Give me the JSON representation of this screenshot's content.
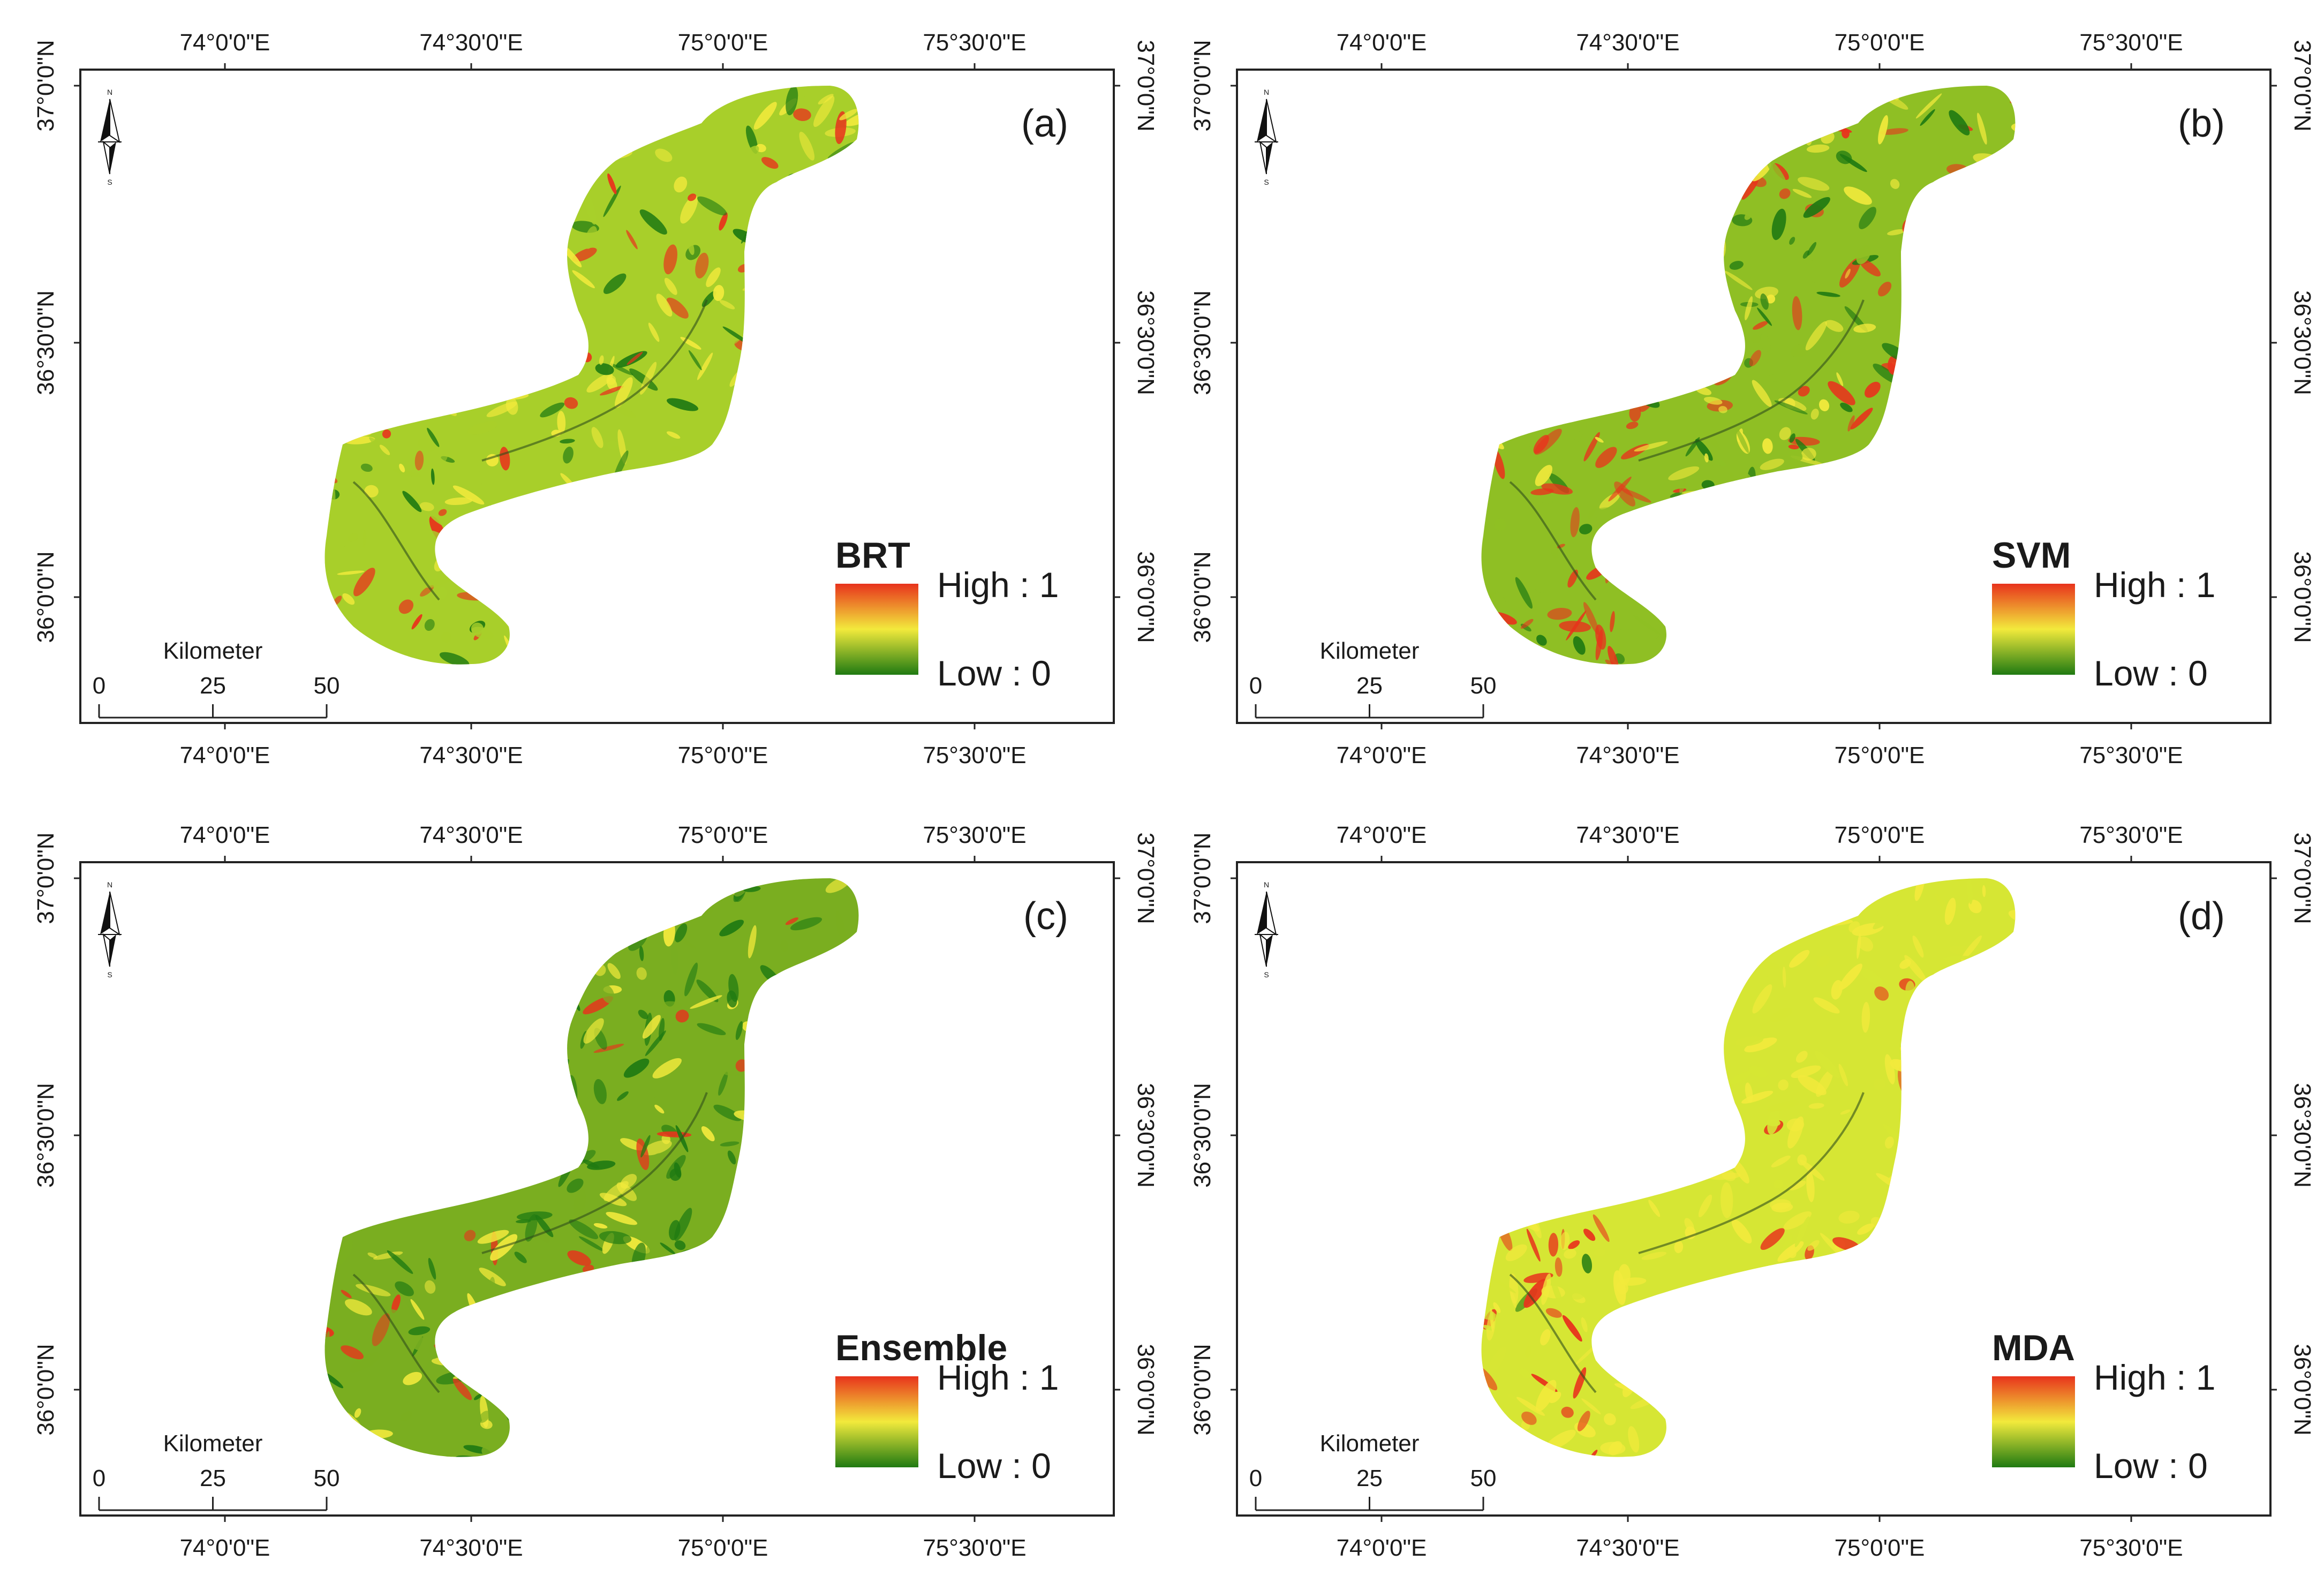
{
  "axes": {
    "lon_ticks": [
      "74°0'0\"E",
      "74°30'0\"E",
      "75°0'0\"E",
      "75°30'0\"E"
    ],
    "lat_ticks": [
      "37°0'0\"N",
      "36°30'0\"N",
      "36°0'0\"N"
    ]
  },
  "scale_bar": {
    "title": "Kilometer",
    "ticks": [
      "0",
      "25",
      "50"
    ]
  },
  "compass": {
    "north": "N",
    "south": "S"
  },
  "legend": {
    "high_label": "High : 1",
    "low_label": "Low : 0"
  },
  "colors": {
    "high": "#e8331c",
    "mid": "#f2ea3c",
    "low": "#1f7a12",
    "frame": "#222222"
  },
  "panels": [
    {
      "id": "a",
      "label": "(a)",
      "model": "BRT",
      "tone": {
        "base": "#a8cf2a",
        "dark_share": 0.3,
        "red_share": 0.22,
        "yellow_share": 0.3
      }
    },
    {
      "id": "b",
      "label": "(b)",
      "model": "SVM",
      "tone": {
        "base": "#8fbf24",
        "dark_share": 0.45,
        "red_share": 0.35,
        "yellow_share": 0.25
      }
    },
    {
      "id": "c",
      "label": "(c)",
      "model": "Ensemble",
      "tone": {
        "base": "#7aae20",
        "dark_share": 0.6,
        "red_share": 0.15,
        "yellow_share": 0.2
      }
    },
    {
      "id": "d",
      "label": "(d)",
      "model": "MDA",
      "tone": {
        "base": "#d6e634",
        "dark_share": 0.08,
        "red_share": 0.22,
        "yellow_share": 0.55
      }
    }
  ]
}
